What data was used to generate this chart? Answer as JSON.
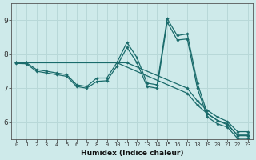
{
  "xlabel": "Humidex (Indice chaleur)",
  "ylabel": "",
  "xlim": [
    -0.5,
    23.5
  ],
  "ylim": [
    5.5,
    9.5
  ],
  "yticks": [
    6,
    7,
    8,
    9
  ],
  "xticks": [
    0,
    1,
    2,
    3,
    4,
    5,
    6,
    7,
    8,
    9,
    10,
    11,
    12,
    13,
    14,
    15,
    16,
    17,
    18,
    19,
    20,
    21,
    22,
    23
  ],
  "background_color": "#ceeaea",
  "line_color": "#1a6b6b",
  "grid_color": "#b8d8d8",
  "lines": [
    {
      "x": [
        0,
        1,
        2,
        3,
        4,
        5,
        6,
        7,
        8,
        9,
        10,
        11,
        12,
        13,
        14,
        15,
        16,
        17,
        18,
        19,
        20,
        21,
        22,
        23
      ],
      "y": [
        7.75,
        7.75,
        7.55,
        7.5,
        7.45,
        7.4,
        7.1,
        7.05,
        7.3,
        7.3,
        7.75,
        8.35,
        7.9,
        7.15,
        7.1,
        9.05,
        8.55,
        8.6,
        7.15,
        6.25,
        6.05,
        5.95,
        5.6,
        5.6
      ]
    },
    {
      "x": [
        0,
        1,
        2,
        3,
        4,
        5,
        6,
        7,
        8,
        9,
        10,
        11,
        12,
        13,
        14,
        15,
        16,
        17,
        18,
        19,
        20,
        21,
        22,
        23
      ],
      "y": [
        7.73,
        7.72,
        7.5,
        7.45,
        7.4,
        7.35,
        7.05,
        7.0,
        7.2,
        7.22,
        7.65,
        8.2,
        7.75,
        7.05,
        7.0,
        8.95,
        8.42,
        8.45,
        7.0,
        6.15,
        5.95,
        5.85,
        5.52,
        5.52
      ]
    },
    {
      "x": [
        0,
        1,
        10,
        11,
        17,
        18,
        19,
        20,
        21,
        22,
        23
      ],
      "y": [
        7.75,
        7.75,
        7.75,
        7.75,
        7.0,
        6.62,
        6.35,
        6.15,
        6.02,
        5.72,
        5.72
      ]
    },
    {
      "x": [
        0,
        1,
        10,
        17,
        18,
        19,
        20,
        21,
        22,
        23
      ],
      "y": [
        7.75,
        7.75,
        7.75,
        6.85,
        6.5,
        6.25,
        6.05,
        5.92,
        5.62,
        5.62
      ]
    }
  ]
}
